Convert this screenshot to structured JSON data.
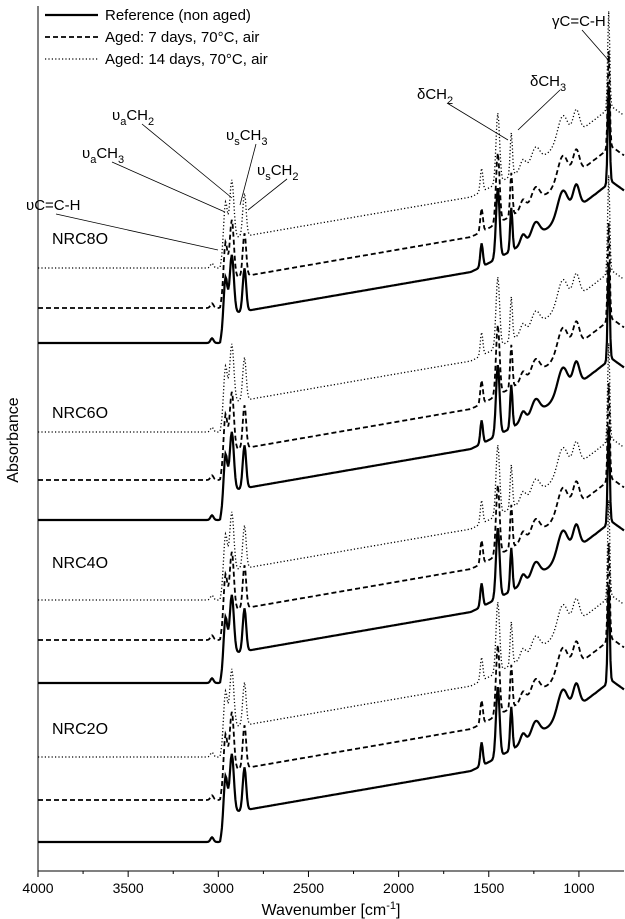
{
  "chart_data": {
    "type": "line",
    "xlabel": "Wavenumber [cm",
    "xlabel_sup": "-1",
    "xlabel_end": "]",
    "ylabel": "Absorbance",
    "xlim": [
      4000,
      750
    ],
    "x_reversed": true,
    "x_ticks": [
      4000,
      3500,
      3000,
      2500,
      2000,
      1500,
      1000
    ],
    "y_ticks_shown": false,
    "legend_position": "top-left",
    "legend": [
      {
        "label": "Reference (non aged)",
        "style": "solid"
      },
      {
        "label": "Aged: 7 days, 70°C, air",
        "style": "dashed"
      },
      {
        "label": "Aged: 14 days, 70°C, air",
        "style": "dotted"
      }
    ],
    "samples": [
      "NRC8O",
      "NRC6O",
      "NRC4O",
      "NRC2O"
    ],
    "annotations": [
      {
        "base": "υC=C-H",
        "sub": "",
        "rest": "",
        "wavenumber": 3010
      },
      {
        "base": "υ",
        "sub": "a",
        "rest": "CH",
        "sub2": "3",
        "wavenumber": 2960
      },
      {
        "base": "υ",
        "sub": "a",
        "rest": "CH",
        "sub2": "2",
        "wavenumber": 2920
      },
      {
        "base": "υ",
        "sub": "s",
        "rest": "CH",
        "sub2": "3",
        "wavenumber": 2870
      },
      {
        "base": "υ",
        "sub": "s",
        "rest": "CH",
        "sub2": "2",
        "wavenumber": 2850
      },
      {
        "base": "δCH",
        "sub": "2",
        "rest": "",
        "wavenumber": 1450
      },
      {
        "base": "δCH",
        "sub": "3",
        "rest": "",
        "wavenumber": 1375
      },
      {
        "base": "γC=C-H",
        "sub": "",
        "rest": "",
        "wavenumber": 835
      }
    ],
    "series_shape": {
      "description": "FTIR absorbance spectra; identical band positions for all samples",
      "peaks": [
        {
          "x": 3035,
          "h": 0.06,
          "w": 12
        },
        {
          "x": 2960,
          "h": 0.5,
          "w": 14
        },
        {
          "x": 2925,
          "h": 0.75,
          "w": 16
        },
        {
          "x": 2855,
          "h": 0.55,
          "w": 13
        },
        {
          "x": 1540,
          "h": 0.3,
          "w": 10
        },
        {
          "x": 1450,
          "h": 0.9,
          "w": 14
        },
        {
          "x": 1375,
          "h": 0.55,
          "w": 9
        },
        {
          "x": 1310,
          "h": 0.12,
          "w": 20
        },
        {
          "x": 1240,
          "h": 0.18,
          "w": 30
        },
        {
          "x": 1090,
          "h": 0.35,
          "w": 40
        },
        {
          "x": 1015,
          "h": 0.3,
          "w": 25
        },
        {
          "x": 835,
          "h": 1.25,
          "w": 8
        }
      ]
    }
  }
}
